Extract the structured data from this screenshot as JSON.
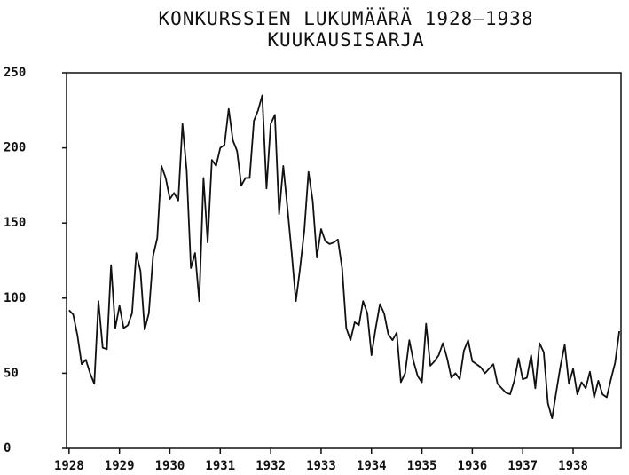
{
  "chart_data": {
    "type": "line",
    "title": "KONKURSSIEN LUKUMÄÄRÄ 1928–1938",
    "subtitle": "KUUKAUSISARJA",
    "x": [
      1928,
      1928.083,
      1928.167,
      1928.25,
      1928.333,
      1928.417,
      1928.5,
      1928.583,
      1928.667,
      1928.75,
      1928.833,
      1928.917,
      1929,
      1929.083,
      1929.167,
      1929.25,
      1929.333,
      1929.417,
      1929.5,
      1929.583,
      1929.667,
      1929.75,
      1929.833,
      1929.917,
      1930,
      1930.083,
      1930.167,
      1930.25,
      1930.333,
      1930.417,
      1930.5,
      1930.583,
      1930.667,
      1930.75,
      1930.833,
      1930.917,
      1931,
      1931.083,
      1931.167,
      1931.25,
      1931.333,
      1931.417,
      1931.5,
      1931.583,
      1931.667,
      1931.75,
      1931.833,
      1931.917,
      1932,
      1932.083,
      1932.167,
      1932.25,
      1932.333,
      1932.417,
      1932.5,
      1932.583,
      1932.667,
      1932.75,
      1932.833,
      1932.917,
      1933,
      1933.083,
      1933.167,
      1933.25,
      1933.333,
      1933.417,
      1933.5,
      1933.583,
      1933.667,
      1933.75,
      1933.833,
      1933.917,
      1934,
      1934.083,
      1934.167,
      1934.25,
      1934.333,
      1934.417,
      1934.5,
      1934.583,
      1934.667,
      1934.75,
      1934.833,
      1934.917,
      1935,
      1935.083,
      1935.167,
      1935.25,
      1935.333,
      1935.417,
      1935.5,
      1935.583,
      1935.667,
      1935.75,
      1935.833,
      1935.917,
      1936,
      1936.083,
      1936.167,
      1936.25,
      1936.333,
      1936.417,
      1936.5,
      1936.583,
      1936.667,
      1936.75,
      1936.833,
      1936.917,
      1937,
      1937.083,
      1937.167,
      1937.25,
      1937.333,
      1937.417,
      1937.5,
      1937.583,
      1937.667,
      1937.75,
      1937.833,
      1937.917,
      1938,
      1938.083,
      1938.167,
      1938.25,
      1938.333,
      1938.417,
      1938.5,
      1938.583,
      1938.667,
      1938.75,
      1938.833,
      1938.917
    ],
    "series": [
      {
        "color": "#111111",
        "values": [
          92,
          89,
          75,
          56,
          59,
          50,
          43,
          98,
          67,
          66,
          122,
          80,
          95,
          80,
          82,
          90,
          130,
          118,
          79,
          90,
          128,
          140,
          188,
          180,
          166,
          170,
          165,
          216,
          185,
          120,
          130,
          98,
          180,
          137,
          192,
          188,
          200,
          202,
          226,
          205,
          198,
          175,
          180,
          180,
          218,
          225,
          235,
          173,
          216,
          222,
          156,
          188,
          160,
          130,
          98,
          120,
          145,
          184,
          165,
          127,
          146,
          138,
          136,
          137,
          139,
          120,
          80,
          72,
          84,
          82,
          98,
          90,
          62,
          80,
          96,
          90,
          76,
          72,
          77,
          44,
          50,
          72,
          58,
          48,
          44,
          83,
          55,
          58,
          62,
          70,
          60,
          47,
          50,
          46,
          65,
          72,
          58,
          56,
          54,
          50,
          53,
          56,
          43,
          40,
          37,
          36,
          45,
          60,
          46,
          47,
          62,
          40,
          70,
          64,
          30,
          20,
          38,
          55,
          69,
          43,
          53,
          36,
          44,
          40,
          51,
          34,
          45,
          36,
          34,
          46,
          57,
          78
        ]
      }
    ],
    "xlim": [
      1927.95,
      1938.95
    ],
    "xticks": [
      1928,
      1929,
      1930,
      1931,
      1932,
      1933,
      1934,
      1935,
      1936,
      1937,
      1938
    ],
    "ylim": [
      0,
      250
    ],
    "yticks": [
      0,
      50,
      100,
      150,
      200,
      250
    ]
  }
}
